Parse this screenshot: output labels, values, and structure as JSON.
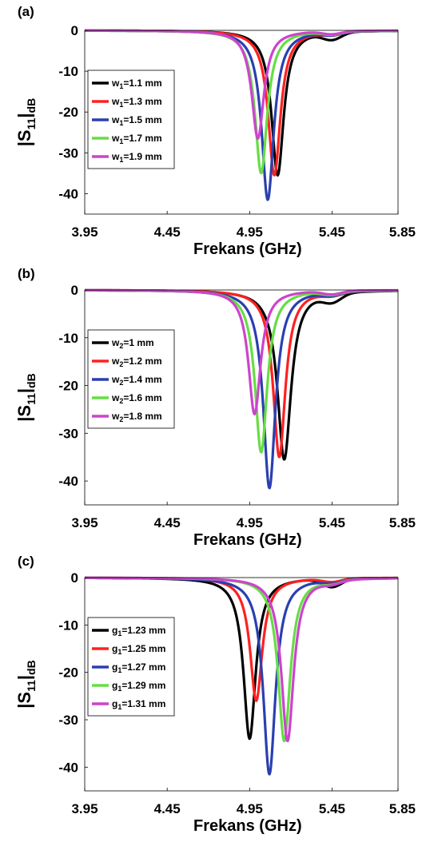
{
  "chart_data": [
    {
      "type": "line",
      "panel_label": "(a)",
      "xlabel": "Frekans (GHz)",
      "ylabel": {
        "main": "|S",
        "sub1": "11",
        "mid": "|",
        "sub2": "dB"
      },
      "xlim": [
        3.95,
        5.85
      ],
      "ylim": [
        -45,
        0
      ],
      "x_ticks": [
        "3.95",
        "4.45",
        "4.95",
        "5.45",
        "5.85"
      ],
      "y_ticks": [
        "0",
        "-10",
        "-20",
        "-30",
        "-40"
      ],
      "legend_position": "left",
      "series": [
        {
          "name": "w1=1.1 mm",
          "label": {
            "pre": "w",
            "sub": "1",
            "post": "=1.1 mm"
          },
          "color": "#000000",
          "f0": 5.12,
          "depth": -35.5,
          "width": 0.045
        },
        {
          "name": "w1=1.3 mm",
          "label": {
            "pre": "w",
            "sub": "1",
            "post": "=1.3 mm"
          },
          "color": "#ff2020",
          "f0": 5.1,
          "depth": -35.5,
          "width": 0.045
        },
        {
          "name": "w1=1.5 mm",
          "label": {
            "pre": "w",
            "sub": "1",
            "post": "=1.5 mm"
          },
          "color": "#2a3fb0",
          "f0": 5.06,
          "depth": -41.5,
          "width": 0.045
        },
        {
          "name": "w1=1.7 mm",
          "label": {
            "pre": "w",
            "sub": "1",
            "post": "=1.7 mm"
          },
          "color": "#66dd44",
          "f0": 5.02,
          "depth": -35.0,
          "width": 0.045
        },
        {
          "name": "w1=1.9 mm",
          "label": {
            "pre": "w",
            "sub": "1",
            "post": "=1.9 mm"
          },
          "color": "#cc44cc",
          "f0": 5.0,
          "depth": -26.5,
          "width": 0.045
        }
      ]
    },
    {
      "type": "line",
      "panel_label": "(b)",
      "xlabel": "Frekans (GHz)",
      "ylabel": {
        "main": "|S",
        "sub1": "11",
        "mid": "|",
        "sub2": "dB"
      },
      "xlim": [
        3.95,
        5.85
      ],
      "ylim": [
        -45,
        0
      ],
      "x_ticks": [
        "3.95",
        "4.45",
        "4.95",
        "5.45",
        "5.85"
      ],
      "y_ticks": [
        "0",
        "-10",
        "-20",
        "-30",
        "-40"
      ],
      "legend_position": "left",
      "series": [
        {
          "name": "w2=1 mm",
          "label": {
            "pre": "w",
            "sub": "2",
            "post": "=1 mm"
          },
          "color": "#000000",
          "f0": 5.16,
          "depth": -35.5,
          "width": 0.05
        },
        {
          "name": "w2=1.2 mm",
          "label": {
            "pre": "w",
            "sub": "2",
            "post": "=1.2 mm"
          },
          "color": "#ff2020",
          "f0": 5.13,
          "depth": -35.0,
          "width": 0.045
        },
        {
          "name": "w2=1.4 mm",
          "label": {
            "pre": "w",
            "sub": "2",
            "post": "=1.4 mm"
          },
          "color": "#2a3fb0",
          "f0": 5.07,
          "depth": -41.5,
          "width": 0.045
        },
        {
          "name": "w2=1.6 mm",
          "label": {
            "pre": "w",
            "sub": "2",
            "post": "=1.6 mm"
          },
          "color": "#66dd44",
          "f0": 5.02,
          "depth": -34.0,
          "width": 0.045
        },
        {
          "name": "w2=1.8 mm",
          "label": {
            "pre": "w",
            "sub": "2",
            "post": "=1.8 mm"
          },
          "color": "#cc44cc",
          "f0": 4.98,
          "depth": -26.0,
          "width": 0.045
        }
      ]
    },
    {
      "type": "line",
      "panel_label": "(c)",
      "xlabel": "Frekans (GHz)",
      "ylabel": {
        "main": "|S",
        "sub1": "11",
        "mid": "|",
        "sub2": "dB"
      },
      "xlim": [
        3.95,
        5.85
      ],
      "ylim": [
        -45,
        0
      ],
      "x_ticks": [
        "3.95",
        "4.45",
        "4.95",
        "5.45",
        "5.85"
      ],
      "y_ticks": [
        "0",
        "-10",
        "-20",
        "-30",
        "-40"
      ],
      "legend_position": "left",
      "series": [
        {
          "name": "g1=1.23 mm",
          "label": {
            "pre": "g",
            "sub": "1",
            "post": "=1.23 mm"
          },
          "color": "#000000",
          "f0": 4.95,
          "depth": -34.0,
          "width": 0.045
        },
        {
          "name": "g1=1.25 mm",
          "label": {
            "pre": "g",
            "sub": "1",
            "post": "=1.25 mm"
          },
          "color": "#ff2020",
          "f0": 4.99,
          "depth": -26.0,
          "width": 0.045
        },
        {
          "name": "g1=1.27 mm",
          "label": {
            "pre": "g",
            "sub": "1",
            "post": "=1.27 mm"
          },
          "color": "#2a3fb0",
          "f0": 5.07,
          "depth": -41.5,
          "width": 0.045
        },
        {
          "name": "g1=1.29 mm",
          "label": {
            "pre": "g",
            "sub": "1",
            "post": "=1.29 mm"
          },
          "color": "#66dd44",
          "f0": 5.16,
          "depth": -34.5,
          "width": 0.045
        },
        {
          "name": "g1=1.31 mm",
          "label": {
            "pre": "g",
            "sub": "1",
            "post": "=1.31 mm"
          },
          "color": "#cc44cc",
          "f0": 5.18,
          "depth": -34.5,
          "width": 0.045
        }
      ]
    }
  ]
}
